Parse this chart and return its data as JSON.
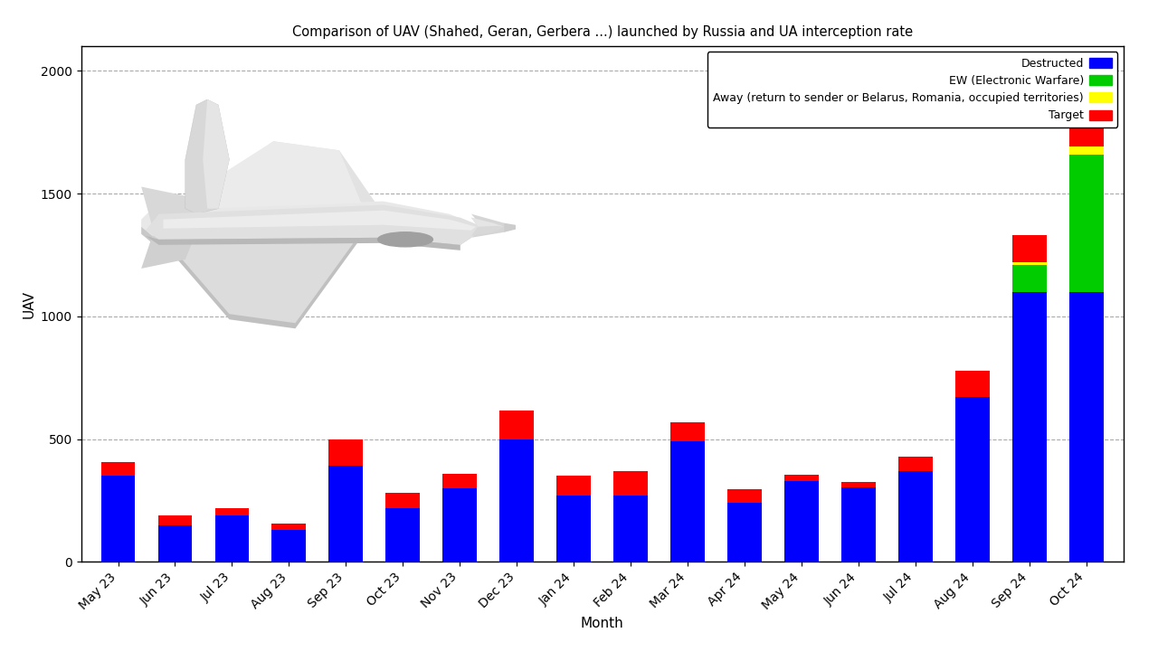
{
  "title": "Comparison of UAV (Shahed, Geran, Gerbera ...) launched by Russia and UA interception rate",
  "xlabel": "Month",
  "ylabel": "UAV",
  "categories": [
    "May 23",
    "Jun 23",
    "Jul 23",
    "Aug 23",
    "Sep 23",
    "Oct 23",
    "Nov 23",
    "Dec 23",
    "Jan 24",
    "Feb 24",
    "Mar 24",
    "Apr 24",
    "May 24",
    "Jun 24",
    "Jul 24",
    "Aug 24",
    "Sep 24",
    "Oct 24"
  ],
  "destructed": [
    350,
    150,
    190,
    130,
    390,
    220,
    300,
    500,
    270,
    270,
    490,
    240,
    330,
    305,
    370,
    670,
    1100,
    1100
  ],
  "ew": [
    0,
    0,
    0,
    0,
    0,
    0,
    0,
    0,
    0,
    0,
    0,
    0,
    0,
    0,
    0,
    0,
    110,
    560
  ],
  "away": [
    0,
    0,
    0,
    0,
    0,
    0,
    0,
    0,
    0,
    0,
    0,
    0,
    0,
    0,
    0,
    0,
    10,
    30
  ],
  "target": [
    55,
    40,
    30,
    25,
    110,
    60,
    60,
    115,
    80,
    100,
    80,
    55,
    25,
    20,
    60,
    110,
    110,
    215
  ],
  "colors": {
    "destructed": "#0000FF",
    "ew": "#00CC00",
    "away": "#FFFF00",
    "target": "#FF0000"
  },
  "legend_labels": [
    "Destructed",
    "EW (Electronic Warfare)",
    "Away (return to sender or Belarus, Romania, occupied territories)",
    "Target"
  ],
  "ylim": [
    0,
    2100
  ],
  "yticks": [
    0,
    500,
    1000,
    1500,
    2000
  ],
  "grid_color": "#aaaaaa",
  "bg_color": "#ffffff",
  "title_fontsize": 10.5,
  "axis_fontsize": 11,
  "tick_fontsize": 10
}
